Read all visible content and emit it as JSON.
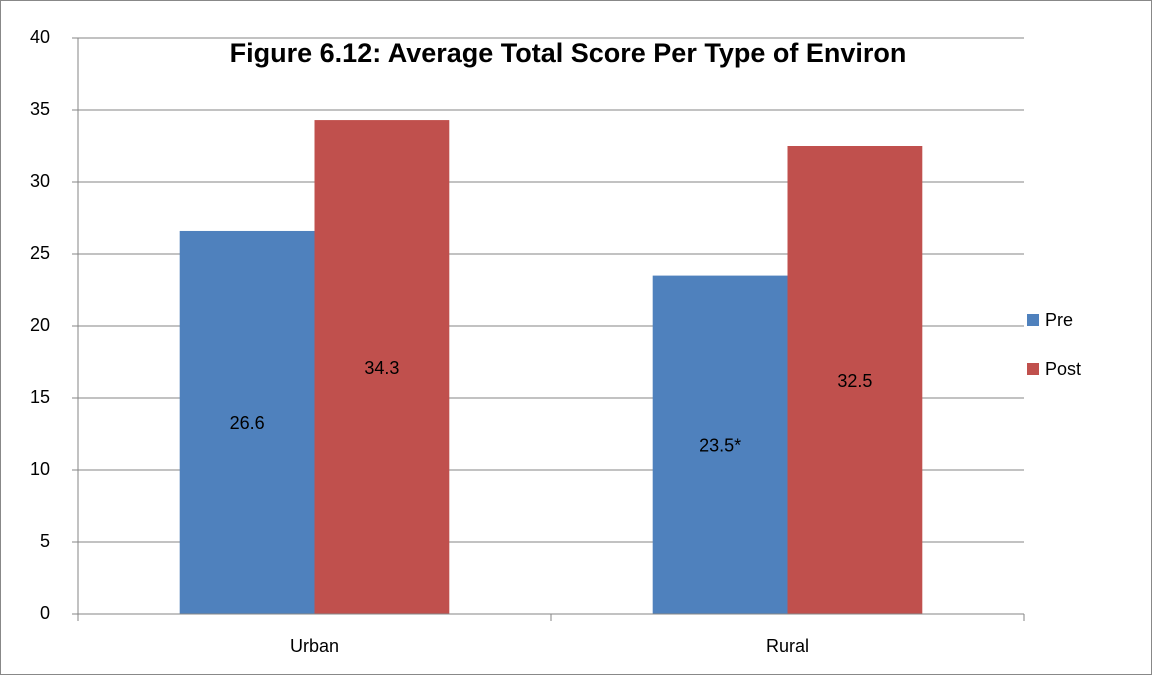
{
  "chart_data": {
    "type": "bar",
    "title": "Figure 6.12: Average Total Score Per Type of Environ",
    "categories": [
      "Urban",
      "Rural"
    ],
    "series": [
      {
        "name": "Pre",
        "color": "#4f81bd",
        "values": [
          26.6,
          23.5
        ],
        "value_labels": [
          "26.6",
          "23.5*"
        ]
      },
      {
        "name": "Post",
        "color": "#c0504d",
        "values": [
          34.3,
          32.5
        ]
      }
    ],
    "ylim": [
      0,
      40
    ],
    "yticks": [
      0,
      5,
      10,
      15,
      20,
      25,
      30,
      35,
      40
    ],
    "grid": true,
    "legend": "right"
  }
}
